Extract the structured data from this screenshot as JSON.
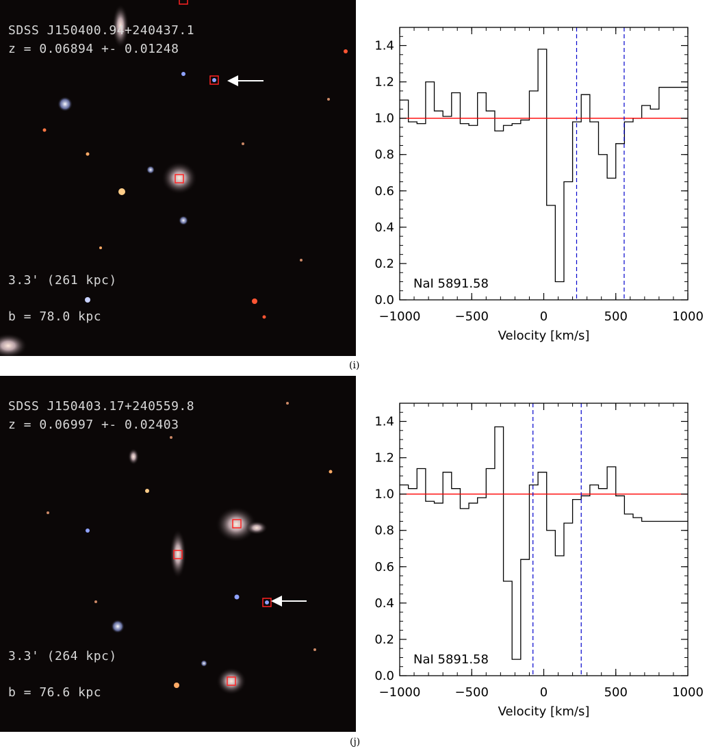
{
  "panels": [
    {
      "id": "i",
      "caption": "(i)",
      "image": {
        "name": "SDSS J150400.94+240437.1",
        "redshift": "z = 0.06894 +- 0.01248",
        "scale": "3.3' (261 kpc)",
        "impact": "b = 78.0 kpc"
      },
      "chart_data": {
        "type": "line",
        "style": "step",
        "xlabel": "Velocity [km/s]",
        "ylabel": "",
        "xlim": [
          -1000,
          1000
        ],
        "ylim": [
          0.0,
          1.5
        ],
        "xticks": [
          -1000,
          -500,
          0,
          500,
          1000
        ],
        "yticks": [
          0.0,
          0.2,
          0.4,
          0.6,
          0.8,
          1.0,
          1.2,
          1.4
        ],
        "annotation": "NaI 5891.58",
        "continuum": 1.0,
        "continuum_color": "#ff0000",
        "series_color": "#000000",
        "marker_color": "#0000cc",
        "markers": [
          228,
          558
        ],
        "x": [
          -1000,
          -940,
          -880,
          -820,
          -760,
          -700,
          -640,
          -580,
          -520,
          -460,
          -400,
          -340,
          -280,
          -220,
          -160,
          -100,
          -40,
          20,
          80,
          140,
          200,
          260,
          320,
          380,
          440,
          500,
          560,
          620,
          680,
          740,
          800,
          860,
          920,
          980
        ],
        "values": [
          1.1,
          0.98,
          0.97,
          1.2,
          1.04,
          1.01,
          1.14,
          0.97,
          0.96,
          1.14,
          1.04,
          0.93,
          0.96,
          0.97,
          0.99,
          1.15,
          1.38,
          0.52,
          0.1,
          0.65,
          0.98,
          1.13,
          0.98,
          0.8,
          0.67,
          0.86,
          0.98,
          1.0,
          1.07,
          1.05,
          1.17,
          1.17,
          1.17,
          1.17
        ]
      }
    },
    {
      "id": "j",
      "caption": "(j)",
      "image": {
        "name": "SDSS J150403.17+240559.8",
        "redshift": "z = 0.06997 +- 0.02403",
        "scale": "3.3' (264 kpc)",
        "impact": "b = 76.6 kpc"
      },
      "chart_data": {
        "type": "line",
        "style": "step",
        "xlabel": "Velocity [km/s]",
        "ylabel": "",
        "xlim": [
          -1000,
          1000
        ],
        "ylim": [
          0.0,
          1.5
        ],
        "xticks": [
          -1000,
          -500,
          0,
          500,
          1000
        ],
        "yticks": [
          0.0,
          0.2,
          0.4,
          0.6,
          0.8,
          1.0,
          1.2,
          1.4
        ],
        "annotation": "NaI 5891.58",
        "continuum": 1.0,
        "continuum_color": "#ff0000",
        "series_color": "#000000",
        "marker_color": "#0000cc",
        "markers": [
          -75,
          260
        ],
        "x": [
          -1000,
          -940,
          -880,
          -820,
          -760,
          -700,
          -640,
          -580,
          -520,
          -460,
          -400,
          -340,
          -280,
          -220,
          -160,
          -100,
          -40,
          20,
          80,
          140,
          200,
          260,
          320,
          380,
          440,
          500,
          560,
          620,
          680,
          740,
          800,
          860,
          920,
          980
        ],
        "values": [
          1.05,
          1.03,
          1.14,
          0.96,
          0.95,
          1.12,
          1.03,
          0.92,
          0.95,
          0.98,
          1.14,
          1.37,
          0.52,
          0.09,
          0.64,
          1.05,
          1.12,
          0.8,
          0.66,
          0.84,
          0.97,
          0.99,
          1.05,
          1.03,
          1.15,
          0.99,
          0.89,
          0.87,
          0.85,
          0.85,
          0.85,
          0.85,
          0.85,
          0.85
        ]
      }
    }
  ]
}
